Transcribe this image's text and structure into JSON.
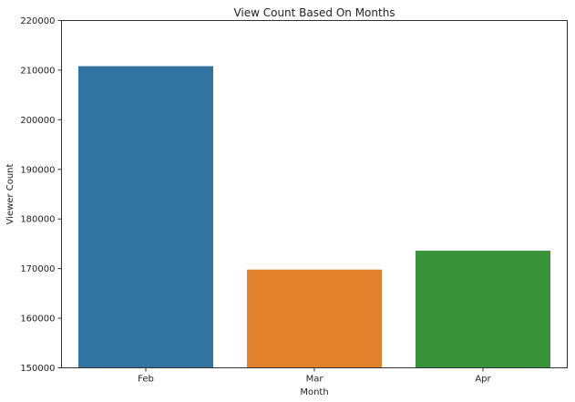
{
  "chart_data": {
    "type": "bar",
    "title": "View Count Based On Months",
    "xlabel": "Month",
    "ylabel": "Viewer Count",
    "categories": [
      "Feb",
      "Mar",
      "Apr"
    ],
    "values": [
      210800,
      169800,
      173600
    ],
    "colors": [
      "#3274a1",
      "#e1812c",
      "#3a923a"
    ],
    "ylim": [
      150000,
      220000
    ],
    "yticks": [
      150000,
      160000,
      170000,
      180000,
      190000,
      200000,
      210000,
      220000
    ],
    "ytick_labels": [
      "150000",
      "160000",
      "170000",
      "180000",
      "190000",
      "200000",
      "210000",
      "220000"
    ],
    "grid": false,
    "legend": "none"
  }
}
